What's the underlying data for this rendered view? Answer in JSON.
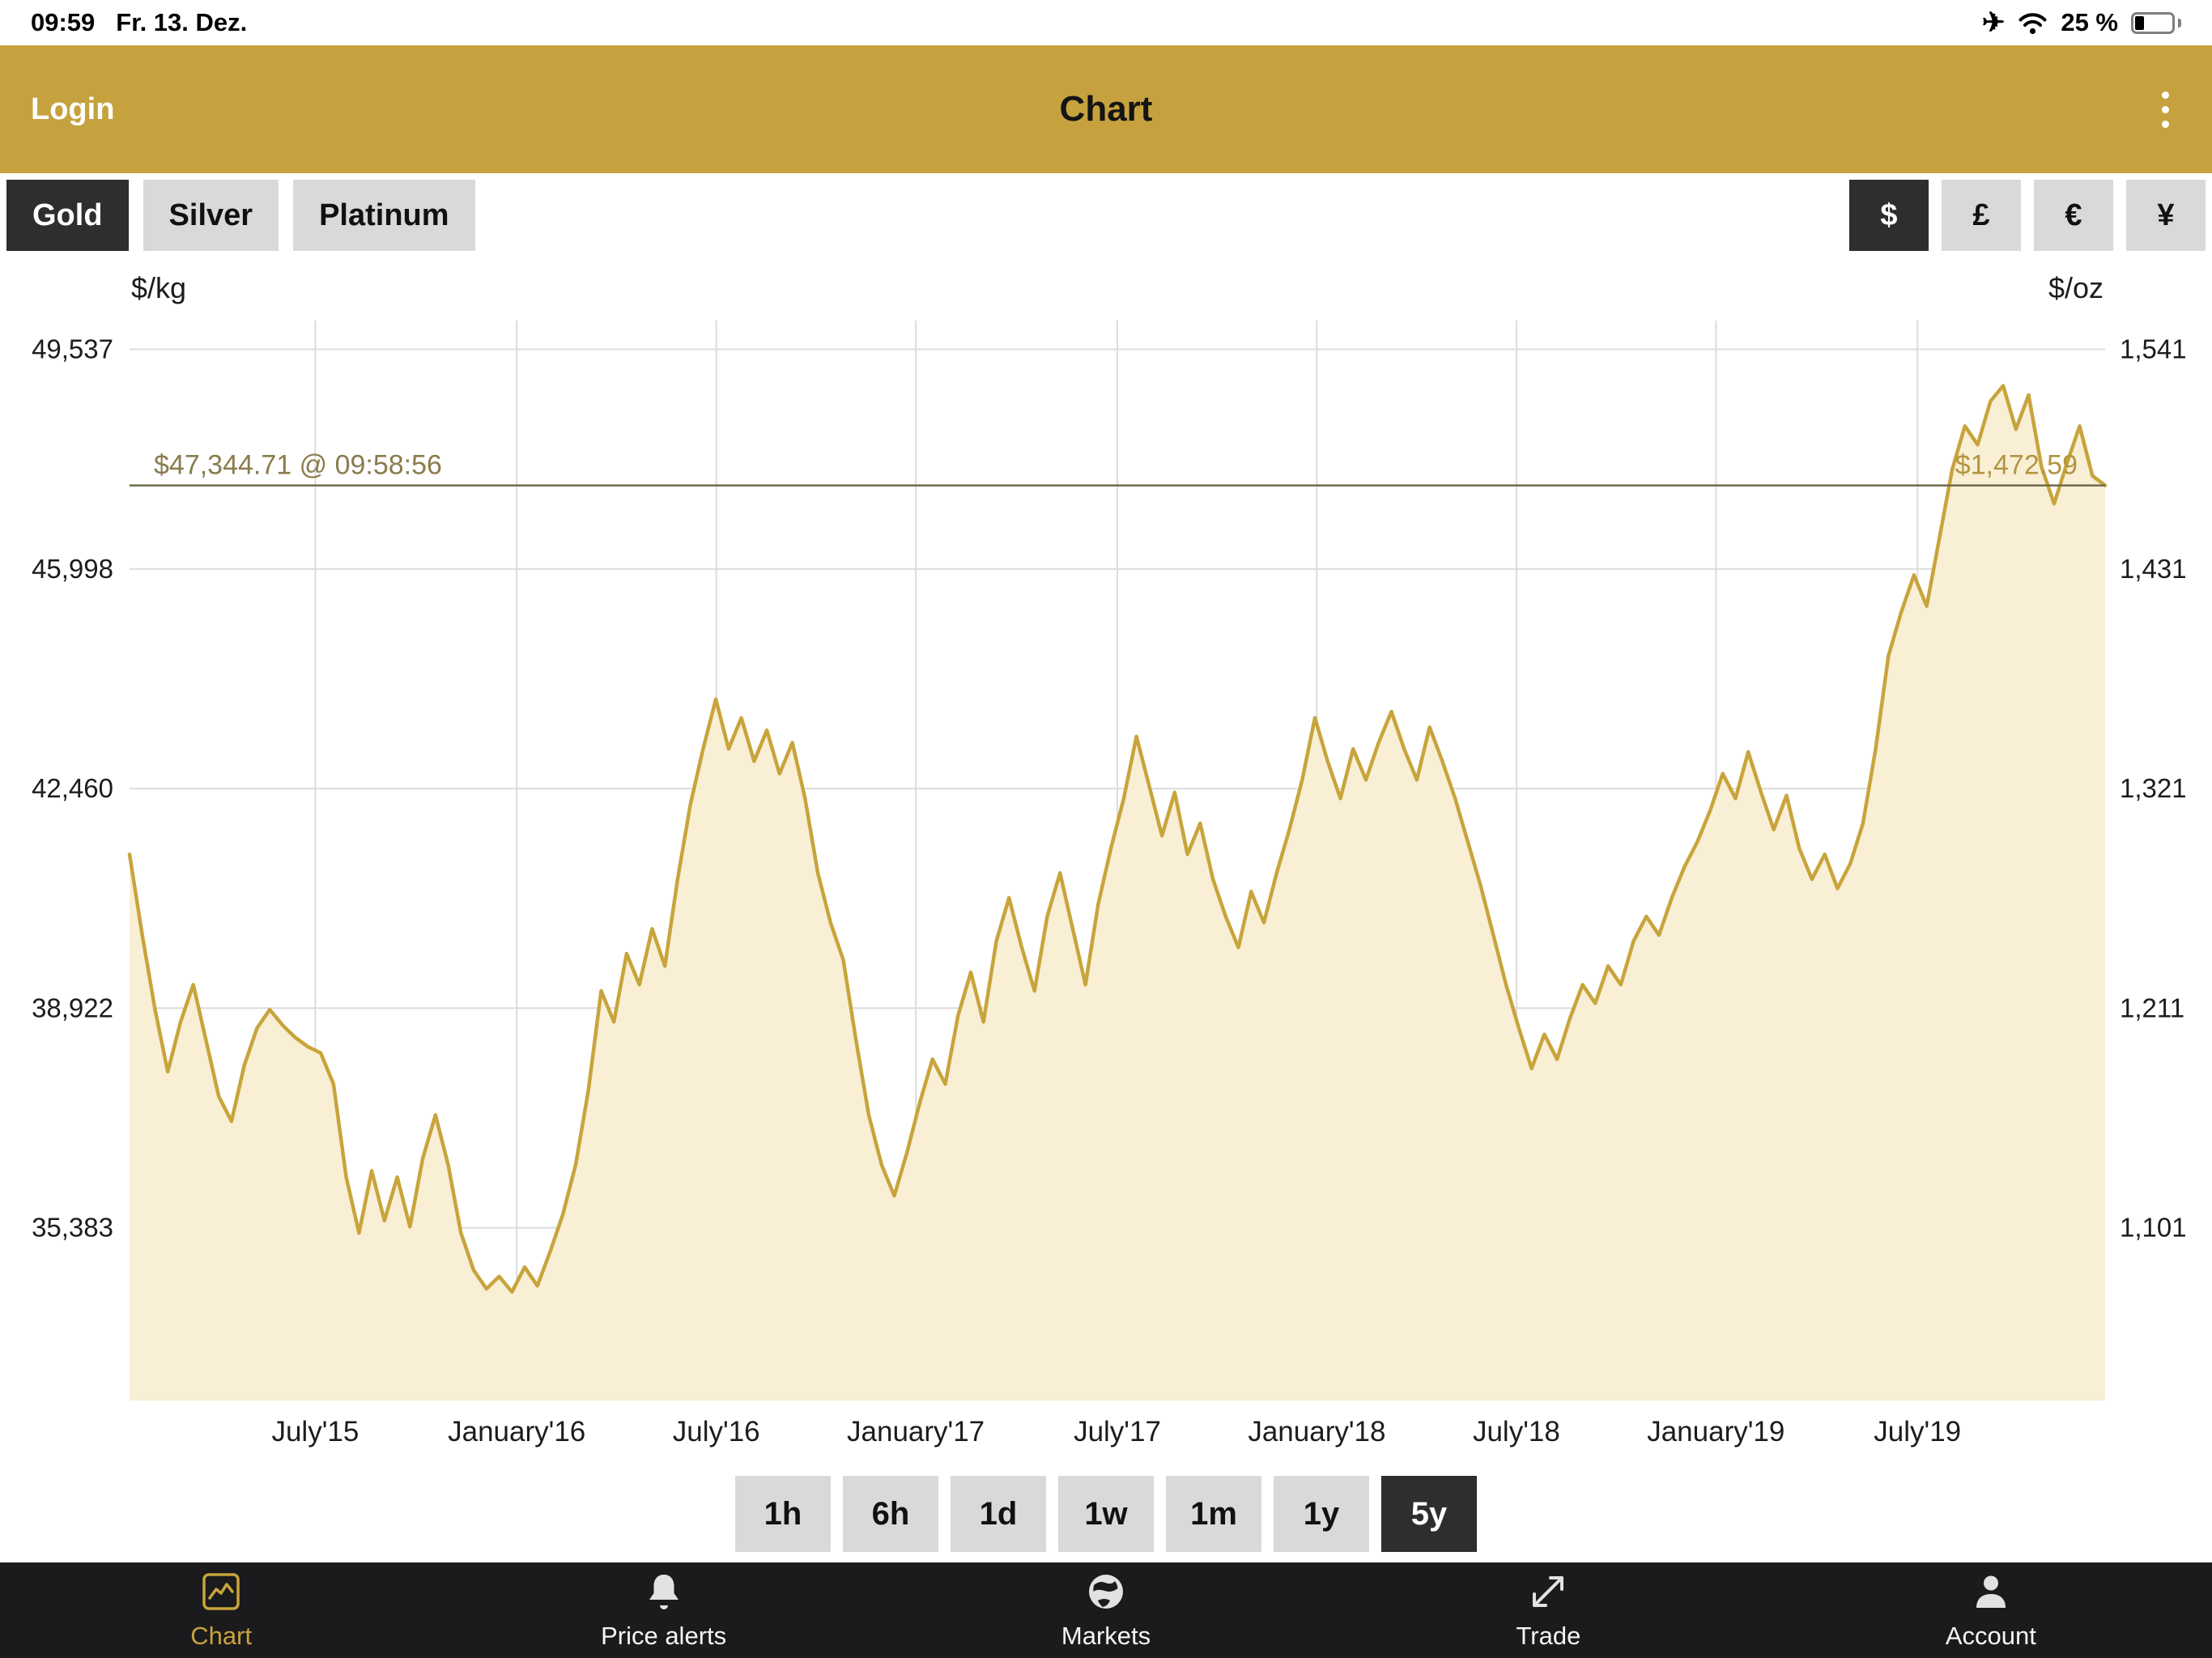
{
  "status_bar": {
    "time": "09:59",
    "date": "Fr. 13. Dez.",
    "battery": "25 %"
  },
  "header": {
    "login": "Login",
    "title": "Chart"
  },
  "metal_tabs": [
    {
      "label": "Gold",
      "selected": true
    },
    {
      "label": "Silver",
      "selected": false
    },
    {
      "label": "Platinum",
      "selected": false
    }
  ],
  "currency_tabs": [
    {
      "label": "$",
      "selected": true
    },
    {
      "label": "£",
      "selected": false
    },
    {
      "label": "€",
      "selected": false
    },
    {
      "label": "¥",
      "selected": false
    }
  ],
  "range_buttons": [
    {
      "label": "1h",
      "selected": false
    },
    {
      "label": "6h",
      "selected": false
    },
    {
      "label": "1d",
      "selected": false
    },
    {
      "label": "1w",
      "selected": false
    },
    {
      "label": "1m",
      "selected": false
    },
    {
      "label": "1y",
      "selected": false
    },
    {
      "label": "5y",
      "selected": true
    }
  ],
  "tab_bar": [
    {
      "label": "Chart",
      "selected": true
    },
    {
      "label": "Price alerts",
      "selected": false
    },
    {
      "label": "Markets",
      "selected": false
    },
    {
      "label": "Trade",
      "selected": false
    },
    {
      "label": "Account",
      "selected": false
    }
  ],
  "colors": {
    "header_gold": "#C6A23F",
    "selected_dark": "#2E2E2E",
    "button_gray": "#D9D9D9",
    "tab_bar_bg": "#1B1B1D",
    "accent_gold": "#C8A43C"
  },
  "chart_data": {
    "type": "area",
    "instrument": "Gold",
    "currency": "USD",
    "period": "5y",
    "left_axis": {
      "unit": "$/kg",
      "ticks": [
        {
          "value": 49537,
          "label": "49,537"
        },
        {
          "value": 45998,
          "label": "45,998"
        },
        {
          "value": 42460,
          "label": "42,460"
        },
        {
          "value": 38922,
          "label": "38,922"
        },
        {
          "value": 35383,
          "label": "35,383"
        }
      ]
    },
    "right_axis": {
      "unit": "$/oz",
      "ticks": [
        "1,541",
        "1,431",
        "1,321",
        "1,211",
        "1,101"
      ]
    },
    "x_axis": {
      "labels": [
        "July'15",
        "January'16",
        "July'16",
        "January'17",
        "July'17",
        "January'18",
        "July'18",
        "January'19",
        "July'19"
      ],
      "fracs": [
        0.094,
        0.196,
        0.297,
        0.398,
        0.5,
        0.601,
        0.702,
        0.803,
        0.905
      ]
    },
    "ylim": [
      32600,
      50000
    ],
    "grid": true,
    "price_line": {
      "value": 47344.71,
      "kg_label": "$47,344.71 @ 09:58:56",
      "oz_label": "$1,472.59"
    },
    "line_color": "#C8A43C",
    "fill_color": "#F9EFD5",
    "grid_color": "#DCDCDC",
    "values_unit": "USD per kg",
    "values": [
      41400,
      40100,
      38900,
      37900,
      38700,
      39300,
      38400,
      37500,
      37100,
      38000,
      38600,
      38900,
      38650,
      38450,
      38300,
      38200,
      37700,
      36200,
      35300,
      36300,
      35500,
      36200,
      35400,
      36500,
      37200,
      36400,
      35300,
      34700,
      34400,
      34600,
      34350,
      34750,
      34450,
      35000,
      35600,
      36400,
      37600,
      39200,
      38700,
      39800,
      39300,
      40200,
      39600,
      41000,
      42200,
      43100,
      43900,
      43100,
      43600,
      42900,
      43400,
      42700,
      43200,
      42300,
      41100,
      40300,
      39700,
      38400,
      37200,
      36400,
      35900,
      36600,
      37400,
      38100,
      37700,
      38800,
      39500,
      38700,
      40000,
      40700,
      39900,
      39200,
      40400,
      41100,
      40200,
      39300,
      40600,
      41500,
      42300,
      43300,
      42500,
      41700,
      42400,
      41400,
      41900,
      41000,
      40400,
      39900,
      40800,
      40300,
      41100,
      41800,
      42600,
      43600,
      42900,
      42300,
      43100,
      42600,
      43200,
      43700,
      43100,
      42600,
      43450,
      42900,
      42300,
      41600,
      40900,
      40100,
      39300,
      38600,
      37950,
      38500,
      38100,
      38750,
      39300,
      39000,
      39600,
      39300,
      40000,
      40400,
      40100,
      40700,
      41200,
      41600,
      42100,
      42700,
      42300,
      43050,
      42400,
      41800,
      42350,
      41500,
      41000,
      41400,
      40850,
      41250,
      41900,
      43100,
      44600,
      45300,
      45900,
      45400,
      46500,
      47600,
      48300,
      48000,
      48700,
      48950,
      48250,
      48800,
      47650,
      47050,
      47700,
      48300,
      47500,
      47345
    ]
  }
}
